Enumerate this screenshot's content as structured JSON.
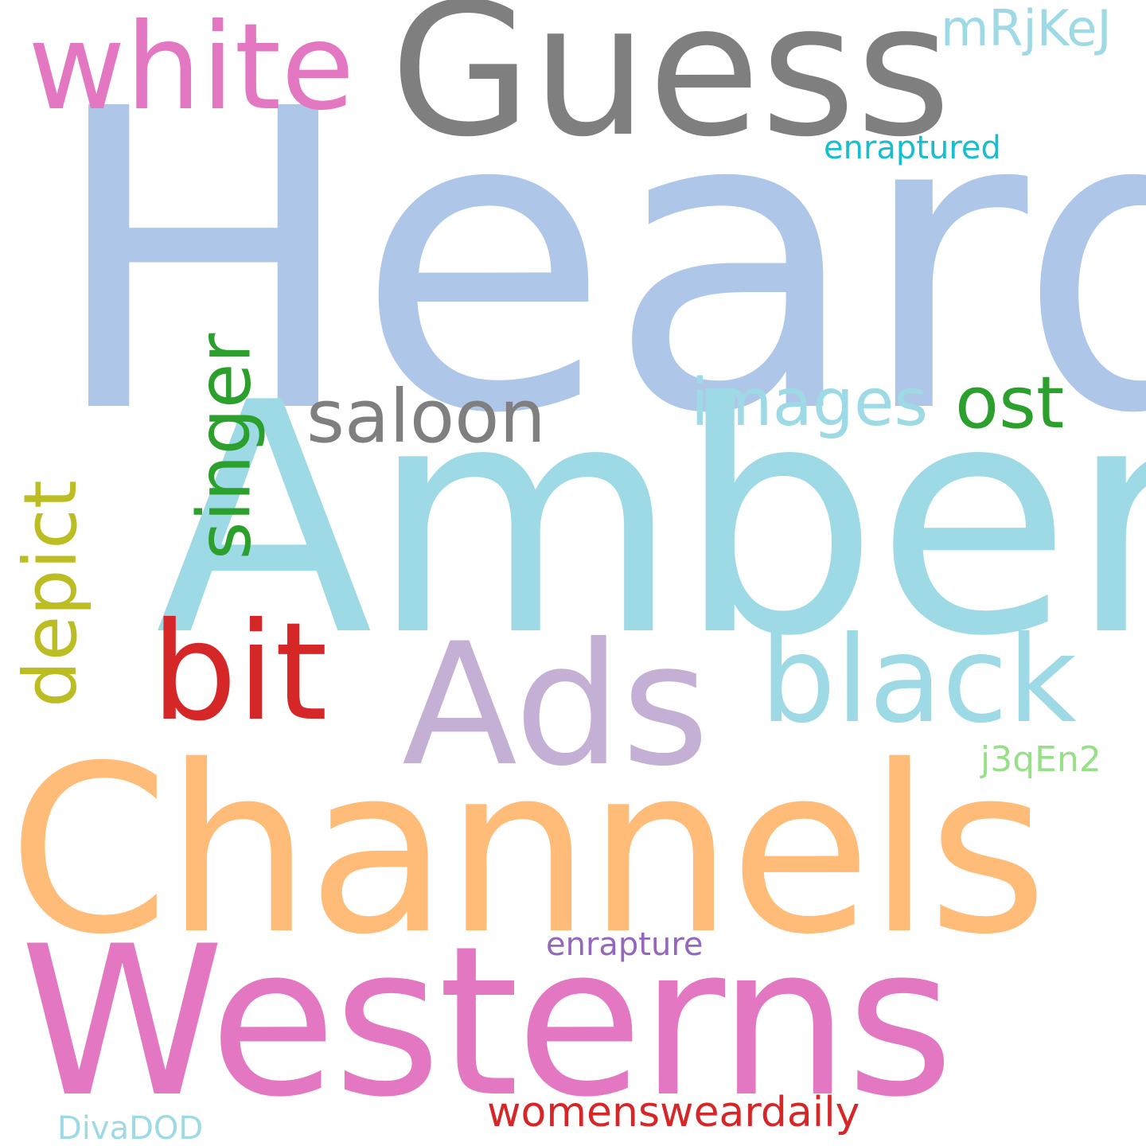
{
  "words": {
    "heard": "Heard",
    "guess": "Guess",
    "white": "white",
    "mrjkej": "mRjKeJ",
    "enraptured": "enraptured",
    "amber": "Amber",
    "saloon": "saloon",
    "images": "images",
    "ost": "ost",
    "singer": "singer",
    "depict": "depict",
    "bit": "bit",
    "ads": "Ads",
    "black": "black",
    "j3qen2": "j3qEn2",
    "channels": "Channels",
    "enrapture": "enrapture",
    "westerns": "Westerns",
    "womenswear": "womensweardaily",
    "divadod": "DivaDOD"
  },
  "colors": {
    "background": "#ffffff",
    "light_blue": "#aec7e8",
    "gray": "#7f7f7f",
    "pink": "#e377c2",
    "pale_cyan": "#9edae5",
    "cyan": "#17becf",
    "green": "#2ca02c",
    "olive": "#bcbd22",
    "red": "#d62728",
    "lavender": "#c5b0d5",
    "light_green": "#98df8a",
    "peach": "#ffbb78",
    "purple": "#9467bd"
  }
}
